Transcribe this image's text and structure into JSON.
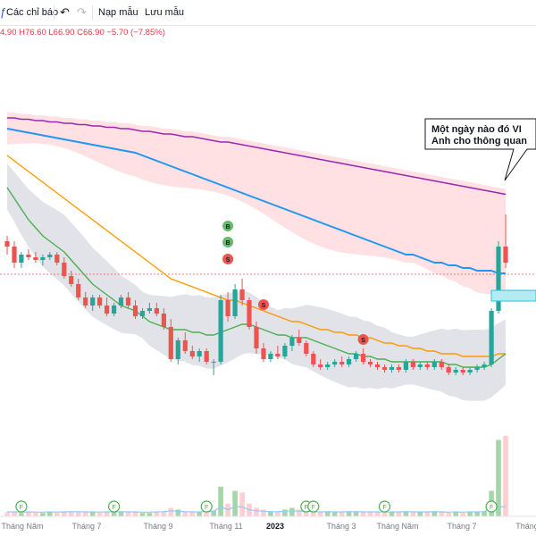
{
  "toolbar": {
    "indicators_label": "Các chỉ báo",
    "template_label": "Nạp mẫu",
    "save_template_label": "Lưu mẫu",
    "undo_icon": "undo-icon",
    "redo_icon": "redo-icon"
  },
  "ohlc_text": "4.90  H76.60  L66.90  C66.90  −5.70 (−7.85%)",
  "annotation": {
    "line1": "Một ngày nào đó VI",
    "line2": "Anh cho thông quan"
  },
  "colors": {
    "up": "#26a69a",
    "down": "#ef5350",
    "ma_short": "#4caf50",
    "ma_mid": "#ff9800",
    "ma_long": "#2196f3",
    "ma_longest": "#9c27b0",
    "cloud_bull": "#ffcdd2",
    "band": "#d1d4dc"
  },
  "chart_data": {
    "type": "candlestick",
    "x_tick_labels": [
      "Tháng Năm",
      "Tháng 7",
      "Tháng 9",
      "Tháng 11",
      "2023",
      "Tháng 3",
      "Tháng Năm",
      "Tháng 7",
      "Tháng"
    ],
    "buy_marker_label": "B",
    "sell_marker_label": "S",
    "event_marker_label": "F",
    "candles": [
      [
        0.5,
        0.52,
        0.45,
        0.48
      ],
      [
        0.48,
        0.5,
        0.4,
        0.42
      ],
      [
        0.42,
        0.46,
        0.4,
        0.45
      ],
      [
        0.45,
        0.47,
        0.43,
        0.44
      ],
      [
        0.44,
        0.46,
        0.42,
        0.43
      ],
      [
        0.43,
        0.45,
        0.41,
        0.44
      ],
      [
        0.44,
        0.46,
        0.43,
        0.45
      ],
      [
        0.45,
        0.46,
        0.41,
        0.42
      ],
      [
        0.42,
        0.44,
        0.36,
        0.37
      ],
      [
        0.37,
        0.39,
        0.33,
        0.34
      ],
      [
        0.34,
        0.36,
        0.28,
        0.29
      ],
      [
        0.29,
        0.31,
        0.25,
        0.26
      ],
      [
        0.26,
        0.3,
        0.24,
        0.29
      ],
      [
        0.29,
        0.3,
        0.25,
        0.26
      ],
      [
        0.26,
        0.29,
        0.22,
        0.23
      ],
      [
        0.23,
        0.27,
        0.22,
        0.26
      ],
      [
        0.26,
        0.3,
        0.25,
        0.29
      ],
      [
        0.29,
        0.31,
        0.25,
        0.26
      ],
      [
        0.26,
        0.28,
        0.21,
        0.22
      ],
      [
        0.22,
        0.25,
        0.21,
        0.24
      ],
      [
        0.24,
        0.27,
        0.23,
        0.25
      ],
      [
        0.25,
        0.27,
        0.22,
        0.23
      ],
      [
        0.23,
        0.25,
        0.17,
        0.18
      ],
      [
        0.18,
        0.21,
        0.05,
        0.06
      ],
      [
        0.06,
        0.14,
        0.04,
        0.13
      ],
      [
        0.13,
        0.16,
        0.08,
        0.09
      ],
      [
        0.09,
        0.11,
        0.06,
        0.07
      ],
      [
        0.07,
        0.1,
        0.05,
        0.09
      ],
      [
        0.09,
        0.1,
        0.04,
        0.05
      ],
      [
        0.05,
        0.06,
        0.0,
        0.05
      ],
      [
        0.05,
        0.3,
        0.04,
        0.28
      ],
      [
        0.28,
        0.31,
        0.2,
        0.22
      ],
      [
        0.22,
        0.34,
        0.21,
        0.32
      ],
      [
        0.32,
        0.36,
        0.26,
        0.28
      ],
      [
        0.28,
        0.29,
        0.17,
        0.18
      ],
      [
        0.18,
        0.2,
        0.08,
        0.1
      ],
      [
        0.1,
        0.12,
        0.05,
        0.06
      ],
      [
        0.06,
        0.09,
        0.05,
        0.08
      ],
      [
        0.08,
        0.11,
        0.06,
        0.07
      ],
      [
        0.07,
        0.12,
        0.06,
        0.11
      ],
      [
        0.11,
        0.15,
        0.09,
        0.14
      ],
      [
        0.14,
        0.17,
        0.11,
        0.12
      ],
      [
        0.12,
        0.13,
        0.07,
        0.08
      ],
      [
        0.08,
        0.09,
        0.03,
        0.04
      ],
      [
        0.04,
        0.06,
        0.02,
        0.03
      ],
      [
        0.03,
        0.05,
        0.02,
        0.04
      ],
      [
        0.04,
        0.06,
        0.03,
        0.05
      ],
      [
        0.05,
        0.07,
        0.03,
        0.04
      ],
      [
        0.04,
        0.07,
        0.03,
        0.06
      ],
      [
        0.06,
        0.09,
        0.05,
        0.08
      ],
      [
        0.08,
        0.1,
        0.04,
        0.05
      ],
      [
        0.05,
        0.06,
        0.03,
        0.04
      ],
      [
        0.04,
        0.05,
        0.02,
        0.03
      ],
      [
        0.03,
        0.04,
        0.01,
        0.02
      ],
      [
        0.02,
        0.04,
        0.01,
        0.03
      ],
      [
        0.03,
        0.04,
        0.01,
        0.02
      ],
      [
        0.02,
        0.06,
        0.01,
        0.05
      ],
      [
        0.05,
        0.06,
        0.02,
        0.03
      ],
      [
        0.03,
        0.05,
        0.02,
        0.04
      ],
      [
        0.04,
        0.05,
        0.02,
        0.03
      ],
      [
        0.03,
        0.06,
        0.02,
        0.05
      ],
      [
        0.05,
        0.06,
        0.02,
        0.03
      ],
      [
        0.03,
        0.04,
        0.0,
        0.01
      ],
      [
        0.01,
        0.03,
        0.0,
        0.02
      ],
      [
        0.02,
        0.03,
        0.0,
        0.01
      ],
      [
        0.01,
        0.03,
        0.0,
        0.02
      ],
      [
        0.02,
        0.04,
        0.01,
        0.03
      ],
      [
        0.03,
        0.05,
        0.02,
        0.04
      ],
      [
        0.04,
        0.25,
        0.03,
        0.24
      ],
      [
        0.24,
        0.5,
        0.23,
        0.48
      ],
      [
        0.48,
        0.6,
        0.4,
        0.42
      ]
    ],
    "ma_short": [
      0.7,
      0.66,
      0.62,
      0.58,
      0.55,
      0.52,
      0.5,
      0.48,
      0.46,
      0.43,
      0.4,
      0.37,
      0.34,
      0.32,
      0.3,
      0.28,
      0.26,
      0.25,
      0.24,
      0.22,
      0.2,
      0.19,
      0.18,
      0.17,
      0.17,
      0.17,
      0.16,
      0.16,
      0.15,
      0.15,
      0.16,
      0.17,
      0.18,
      0.19,
      0.19,
      0.18,
      0.17,
      0.16,
      0.15,
      0.15,
      0.14,
      0.14,
      0.14,
      0.13,
      0.12,
      0.11,
      0.1,
      0.09,
      0.08,
      0.08,
      0.07,
      0.07,
      0.06,
      0.06,
      0.05,
      0.05,
      0.05,
      0.05,
      0.05,
      0.05,
      0.05,
      0.05,
      0.04,
      0.04,
      0.03,
      0.03,
      0.03,
      0.03,
      0.04,
      0.06,
      0.08
    ],
    "ma_mid": [
      0.82,
      0.8,
      0.78,
      0.76,
      0.74,
      0.72,
      0.7,
      0.68,
      0.66,
      0.64,
      0.62,
      0.6,
      0.58,
      0.56,
      0.54,
      0.52,
      0.5,
      0.48,
      0.46,
      0.44,
      0.42,
      0.4,
      0.38,
      0.36,
      0.35,
      0.34,
      0.33,
      0.32,
      0.31,
      0.3,
      0.29,
      0.28,
      0.28,
      0.27,
      0.26,
      0.25,
      0.24,
      0.23,
      0.22,
      0.21,
      0.2,
      0.2,
      0.19,
      0.18,
      0.17,
      0.17,
      0.16,
      0.16,
      0.15,
      0.15,
      0.14,
      0.14,
      0.13,
      0.12,
      0.12,
      0.11,
      0.11,
      0.1,
      0.1,
      0.09,
      0.09,
      0.08,
      0.08,
      0.08,
      0.07,
      0.07,
      0.07,
      0.07,
      0.07,
      0.08,
      0.08
    ],
    "ma_long": [
      0.92,
      0.915,
      0.91,
      0.905,
      0.9,
      0.895,
      0.89,
      0.885,
      0.88,
      0.875,
      0.87,
      0.865,
      0.86,
      0.855,
      0.85,
      0.845,
      0.84,
      0.835,
      0.83,
      0.82,
      0.81,
      0.8,
      0.79,
      0.78,
      0.77,
      0.76,
      0.75,
      0.74,
      0.73,
      0.72,
      0.71,
      0.7,
      0.69,
      0.68,
      0.67,
      0.66,
      0.65,
      0.64,
      0.63,
      0.62,
      0.61,
      0.6,
      0.59,
      0.58,
      0.57,
      0.56,
      0.55,
      0.54,
      0.53,
      0.52,
      0.51,
      0.5,
      0.49,
      0.48,
      0.47,
      0.46,
      0.45,
      0.45,
      0.44,
      0.43,
      0.42,
      0.42,
      0.41,
      0.41,
      0.4,
      0.4,
      0.39,
      0.39,
      0.39,
      0.38,
      0.38
    ],
    "ma_longest": [
      0.96,
      0.96,
      0.955,
      0.955,
      0.95,
      0.95,
      0.945,
      0.945,
      0.94,
      0.94,
      0.935,
      0.935,
      0.93,
      0.93,
      0.925,
      0.925,
      0.92,
      0.92,
      0.915,
      0.91,
      0.91,
      0.905,
      0.9,
      0.9,
      0.895,
      0.89,
      0.89,
      0.885,
      0.88,
      0.875,
      0.87,
      0.87,
      0.865,
      0.86,
      0.855,
      0.85,
      0.845,
      0.84,
      0.835,
      0.83,
      0.825,
      0.82,
      0.815,
      0.81,
      0.805,
      0.8,
      0.795,
      0.79,
      0.785,
      0.78,
      0.775,
      0.77,
      0.765,
      0.76,
      0.755,
      0.75,
      0.745,
      0.74,
      0.735,
      0.73,
      0.725,
      0.72,
      0.715,
      0.71,
      0.705,
      0.7,
      0.695,
      0.69,
      0.685,
      0.68,
      0.675
    ],
    "volume": [
      0.05,
      0.05,
      0.04,
      0.05,
      0.04,
      0.04,
      0.05,
      0.04,
      0.05,
      0.06,
      0.06,
      0.05,
      0.05,
      0.04,
      0.05,
      0.05,
      0.06,
      0.05,
      0.05,
      0.04,
      0.04,
      0.05,
      0.06,
      0.1,
      0.08,
      0.06,
      0.05,
      0.05,
      0.06,
      0.07,
      0.35,
      0.15,
      0.3,
      0.28,
      0.15,
      0.1,
      0.08,
      0.06,
      0.06,
      0.08,
      0.1,
      0.08,
      0.08,
      0.06,
      0.05,
      0.06,
      0.05,
      0.05,
      0.06,
      0.06,
      0.05,
      0.05,
      0.05,
      0.04,
      0.05,
      0.05,
      0.06,
      0.05,
      0.05,
      0.05,
      0.06,
      0.05,
      0.04,
      0.05,
      0.04,
      0.05,
      0.05,
      0.06,
      0.3,
      0.9,
      0.95
    ]
  }
}
